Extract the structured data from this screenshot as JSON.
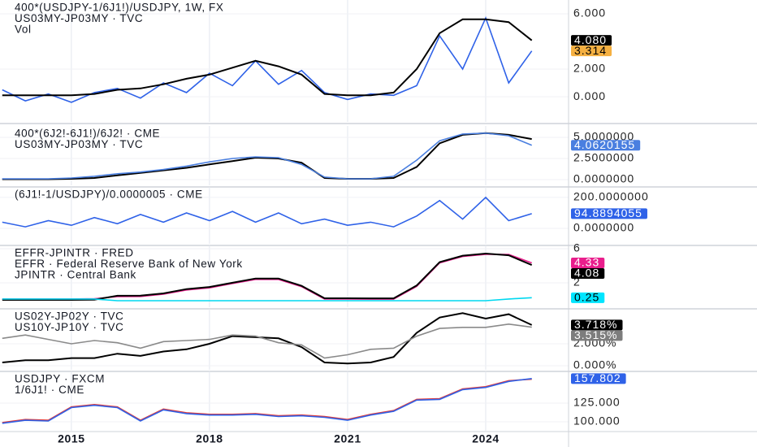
{
  "chart_data": [
    {
      "type": "line",
      "labels": [
        "400*(USDJPY-1/6J1!)/USDJPY, 1W, FX",
        "US03MY-JP03MY · TVC",
        "Vol"
      ],
      "x": [
        2013.5,
        2014,
        2014.5,
        2015,
        2015.5,
        2016,
        2016.5,
        2017,
        2017.5,
        2018,
        2018.5,
        2019,
        2019.5,
        2020,
        2020.5,
        2021,
        2021.5,
        2022,
        2022.5,
        2023,
        2023.5,
        2024,
        2024.5,
        2025
      ],
      "xlim": [
        2013.45,
        2025.8
      ],
      "ylim": [
        -1.82,
        7.0
      ],
      "yticks": [
        {
          "value": 6,
          "label": "6.000"
        },
        {
          "value": 2,
          "label": "2.000"
        },
        {
          "value": 0,
          "label": "0.000"
        }
      ],
      "series": [
        {
          "color": "#2f62e8",
          "label_color": "#f5b041",
          "label_text": "#000",
          "values": [
            0.5,
            -0.3,
            0.2,
            -0.4,
            0.3,
            0.6,
            -0.1,
            1.0,
            0.3,
            1.7,
            0.8,
            2.6,
            0.9,
            1.9,
            0.3,
            -0.2,
            0.2,
            0.1,
            0.8,
            4.4,
            2.0,
            5.7,
            1.0,
            3.314
          ]
        },
        {
          "color": "#000000",
          "label_color": "#000000",
          "label_text": "#fff",
          "values": [
            0.1,
            0.1,
            0.1,
            0.1,
            0.2,
            0.5,
            0.6,
            0.9,
            1.3,
            1.6,
            2.1,
            2.6,
            2.2,
            1.6,
            0.2,
            0.1,
            0.1,
            0.3,
            2.0,
            4.6,
            5.6,
            5.6,
            5.4,
            4.08
          ],
          "value_labels": [
            null,
            null,
            null,
            null,
            null,
            null,
            null,
            null,
            null,
            null,
            null,
            null,
            null,
            null,
            null,
            null,
            null,
            null,
            null,
            null,
            null,
            null,
            null,
            "4.080"
          ]
        }
      ]
    },
    {
      "type": "line",
      "labels": [
        "400*(6J2!-6J1!)/6J2! · CME",
        "US03MY-JP03MY · TVC"
      ],
      "x": [
        2013.5,
        2014,
        2014.5,
        2015,
        2015.5,
        2016,
        2016.5,
        2017,
        2017.5,
        2018,
        2018.5,
        2019,
        2019.5,
        2020,
        2020.5,
        2021,
        2021.5,
        2022,
        2022.5,
        2023,
        2023.5,
        2024,
        2024.5,
        2025
      ],
      "xlim": [
        2013.45,
        2025.8
      ],
      "ylim": [
        -0.67,
        6.35
      ],
      "yticks": [
        {
          "value": 5,
          "label": "5.0000000"
        },
        {
          "value": 2.5,
          "label": "2.5000000"
        },
        {
          "value": 0,
          "label": "0.0000000"
        }
      ],
      "series": [
        {
          "color": "#000000",
          "values": [
            0.05,
            0.05,
            0.05,
            0.1,
            0.2,
            0.5,
            0.8,
            1.1,
            1.4,
            1.8,
            2.2,
            2.6,
            2.5,
            2.0,
            0.2,
            0.1,
            0.1,
            0.2,
            1.5,
            4.3,
            5.3,
            5.5,
            5.3,
            4.8
          ]
        },
        {
          "color": "#4a7fe0",
          "label_color": "#4a7fe0",
          "label_text": "#fff",
          "values": [
            0.1,
            0.1,
            0.1,
            0.2,
            0.4,
            0.7,
            0.9,
            1.2,
            1.6,
            2.1,
            2.5,
            2.7,
            2.6,
            1.8,
            0.3,
            0.1,
            0.1,
            0.4,
            2.3,
            4.6,
            5.4,
            5.5,
            5.2,
            4.0620155
          ]
        }
      ]
    },
    {
      "type": "line",
      "labels": [
        "(6J1!-1/USDJPY)/0.0000005 · CME"
      ],
      "x": [
        2013.5,
        2014,
        2014.5,
        2015,
        2015.5,
        2016,
        2016.5,
        2017,
        2017.5,
        2018,
        2018.5,
        2019,
        2019.5,
        2020,
        2020.5,
        2021,
        2021.5,
        2022,
        2022.5,
        2023,
        2023.5,
        2024,
        2024.5,
        2025
      ],
      "xlim": [
        2013.45,
        2025.8
      ],
      "ylim": [
        -100,
        268
      ],
      "yticks": [
        {
          "value": 200,
          "label": "200.0000000"
        },
        {
          "value": 0,
          "label": "0.0000000"
        }
      ],
      "series": [
        {
          "color": "#2f62e8",
          "label_color": "#2f62e8",
          "label_text": "#fff",
          "values": [
            40,
            10,
            50,
            20,
            70,
            30,
            90,
            40,
            100,
            50,
            110,
            40,
            100,
            30,
            60,
            20,
            40,
            10,
            80,
            180,
            60,
            200,
            50,
            94.8894055
          ]
        }
      ]
    },
    {
      "type": "line",
      "labels": [
        "EFFR-JPINTR · FRED",
        "EFFR · Federal Reserve Bank of New York",
        "JPINTR · Central Bank"
      ],
      "x": [
        2013.5,
        2014,
        2014.5,
        2015,
        2015.5,
        2016,
        2016.5,
        2017,
        2017.5,
        2018,
        2018.5,
        2019,
        2019.5,
        2020,
        2020.5,
        2021,
        2021.5,
        2022,
        2022.5,
        2023,
        2023.5,
        2024,
        2024.5,
        2025
      ],
      "xlim": [
        2013.45,
        2025.8
      ],
      "ylim": [
        -0.86,
        6.38
      ],
      "yticks": [
        6,
        2
      ],
      "series": [
        {
          "color": "#e91e8c",
          "label_color": "#e91e8c",
          "label_text": "#fff",
          "values": [
            0.1,
            0.1,
            0.1,
            0.1,
            0.13,
            0.38,
            0.4,
            0.66,
            1.16,
            1.41,
            1.91,
            2.4,
            2.4,
            1.55,
            0.09,
            0.09,
            0.08,
            0.08,
            1.58,
            4.33,
            5.08,
            5.33,
            5.33,
            4.33
          ]
        },
        {
          "color": "#000000",
          "label_color": "#000000",
          "label_text": "#fff",
          "values": [
            0.0,
            0.0,
            0.0,
            0.0,
            0.03,
            0.48,
            0.5,
            0.76,
            1.26,
            1.51,
            2.01,
            2.5,
            2.5,
            1.65,
            0.19,
            0.19,
            0.18,
            0.18,
            1.68,
            4.43,
            5.18,
            5.43,
            5.23,
            4.08
          ]
        },
        {
          "color": "#00d8f0",
          "label_color": "#00e5ff",
          "label_text": "#000",
          "values": [
            0.1,
            0.1,
            0.1,
            0.1,
            0.1,
            -0.1,
            -0.1,
            -0.1,
            -0.1,
            -0.1,
            -0.1,
            -0.1,
            -0.1,
            -0.1,
            -0.1,
            -0.1,
            -0.1,
            -0.1,
            -0.1,
            -0.1,
            -0.1,
            -0.1,
            0.1,
            0.25
          ]
        }
      ]
    },
    {
      "type": "line",
      "labels": [
        "US02Y-JP02Y · TVC",
        "US10Y-JP10Y · TVC"
      ],
      "x": [
        2013.5,
        2014,
        2014.5,
        2015,
        2015.5,
        2016,
        2016.5,
        2017,
        2017.5,
        2018,
        2018.5,
        2019,
        2019.5,
        2020,
        2020.5,
        2021,
        2021.5,
        2022,
        2022.5,
        2023,
        2023.5,
        2024,
        2024.5,
        2025
      ],
      "xlim": [
        2013.45,
        2025.8
      ],
      "ylim": [
        -0.37,
        5.19
      ],
      "yticks": [
        {
          "value": 2,
          "label": "2.000%"
        },
        {
          "value": 0,
          "label": "0.000%"
        }
      ],
      "series": [
        {
          "color": "#000000",
          "label_color": "#000000",
          "label_text": "#fff",
          "values": [
            0.3,
            0.5,
            0.5,
            0.7,
            0.7,
            1.1,
            0.9,
            1.3,
            1.5,
            2.0,
            2.7,
            2.6,
            2.5,
            1.7,
            0.3,
            0.2,
            0.3,
            0.8,
            3.0,
            4.4,
            4.8,
            4.3,
            4.7,
            3.718
          ],
          "value_labels": [
            null,
            null,
            null,
            null,
            null,
            null,
            null,
            null,
            null,
            null,
            null,
            null,
            null,
            null,
            null,
            null,
            null,
            null,
            null,
            null,
            null,
            null,
            null,
            "3.718%"
          ]
        },
        {
          "color": "#8a8a8a",
          "label_color": "#7d7d7d",
          "label_text": "#fff",
          "values": [
            2.5,
            2.8,
            2.4,
            2.0,
            2.3,
            2.1,
            1.6,
            2.2,
            2.3,
            2.4,
            2.8,
            2.7,
            2.1,
            1.9,
            0.7,
            1.0,
            1.5,
            1.6,
            2.7,
            3.4,
            3.5,
            3.5,
            3.8,
            3.515
          ],
          "value_labels": [
            null,
            null,
            null,
            null,
            null,
            null,
            null,
            null,
            null,
            null,
            null,
            null,
            null,
            null,
            null,
            null,
            null,
            null,
            null,
            null,
            null,
            null,
            null,
            "3.515%"
          ]
        }
      ]
    },
    {
      "type": "line",
      "labels": [
        "USDJPY · FXCM",
        "1/6J1! · CME"
      ],
      "x": [
        2013.5,
        2014,
        2014.5,
        2015,
        2015.5,
        2016,
        2016.5,
        2017,
        2017.5,
        2018,
        2018.5,
        2019,
        2019.5,
        2020,
        2020.5,
        2021,
        2021.5,
        2022,
        2022.5,
        2023,
        2023.5,
        2024,
        2024.5,
        2025
      ],
      "xlim": [
        2013.45,
        2025.8
      ],
      "ylim": [
        88.0,
        167.4
      ],
      "xticks": [
        2015,
        2018,
        2021,
        2024
      ],
      "yticks": [
        {
          "value": 125,
          "label": "125.000"
        },
        {
          "value": 100,
          "label": "100.000"
        }
      ],
      "series": [
        {
          "color": "#e53935",
          "values": [
            99,
            103,
            102,
            120,
            123,
            120,
            102,
            117,
            112,
            110,
            110,
            111,
            108,
            109,
            107,
            103,
            110,
            115,
            130,
            131,
            144,
            147,
            155,
            157
          ]
        },
        {
          "color": "#2f62e8",
          "label_color": "#2f62e8",
          "label_text": "#fff",
          "values": [
            98,
            102,
            101,
            119,
            122,
            119,
            101,
            116,
            111,
            109,
            109,
            110,
            107,
            108,
            106,
            102,
            109,
            114,
            129,
            130,
            143,
            146,
            154,
            157.802
          ]
        }
      ]
    }
  ]
}
